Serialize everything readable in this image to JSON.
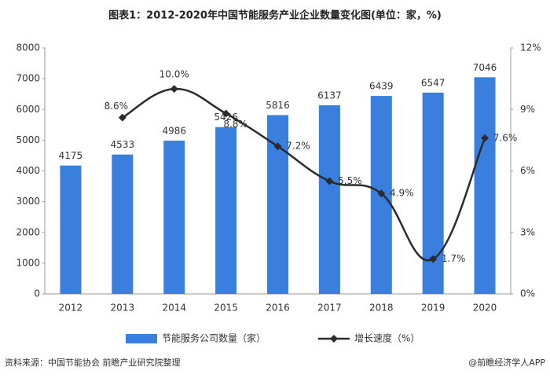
{
  "chart_data": {
    "type": "bar-line",
    "title": "图表1：2012-2020年中国节能服务产业企业数量变化图(单位：家，%)",
    "categories": [
      "2012",
      "2013",
      "2014",
      "2015",
      "2016",
      "2017",
      "2018",
      "2019",
      "2020"
    ],
    "series": [
      {
        "name": "节能服务公司数量（家）",
        "type": "bar",
        "color": "#3a7ede",
        "values": [
          4175,
          4533,
          4986,
          5426,
          5816,
          6137,
          6439,
          6547,
          7046
        ]
      },
      {
        "name": "增长速度（%）",
        "type": "line",
        "axis": "y2",
        "color": "#2b2b2b",
        "values": [
          null,
          8.6,
          10.0,
          8.8,
          7.2,
          5.5,
          4.9,
          1.7,
          7.6
        ],
        "value_labels": [
          null,
          "8.6%",
          "10.0%",
          "8.8%",
          "7.2%",
          "5.5%",
          "4.9%",
          "1.7%",
          "7.6%"
        ]
      }
    ],
    "ylim": [
      0,
      8000
    ],
    "yticks": [
      0,
      1000,
      2000,
      3000,
      4000,
      5000,
      6000,
      7000,
      8000
    ],
    "y2lim": [
      0,
      12
    ],
    "y2ticks": [
      {
        "value": 0,
        "label": "0%"
      },
      {
        "value": 3,
        "label": "3%"
      },
      {
        "value": 6,
        "label": "6%"
      },
      {
        "value": 9,
        "label": "9%"
      },
      {
        "value": 12,
        "label": "12%"
      }
    ],
    "grid": false,
    "legend": "bottom",
    "source": "资料来源：中国节能协会 前瞻产业研究院整理",
    "credit": "@前瞻经济学人APP"
  }
}
